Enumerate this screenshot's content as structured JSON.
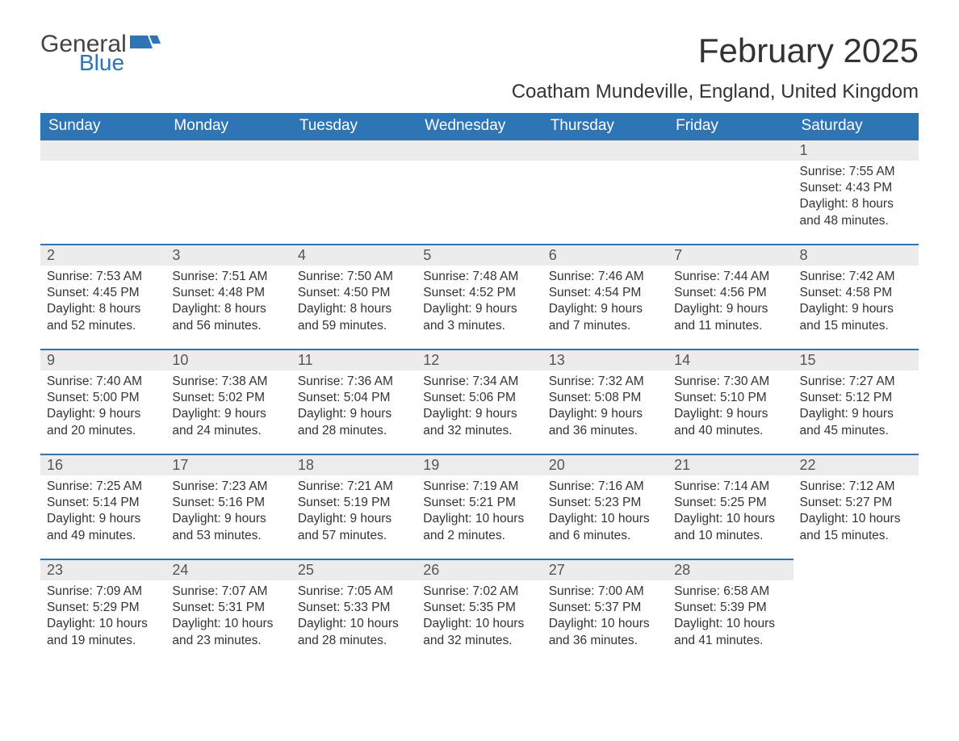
{
  "brand": {
    "general": "General",
    "blue": "Blue"
  },
  "title": {
    "month": "February 2025",
    "location": "Coatham Mundeville, England, United Kingdom"
  },
  "colors": {
    "accent": "#2e75b6",
    "header_bg": "#2e75b6",
    "header_text": "#ffffff",
    "daynum_bg": "#ececec",
    "body_text": "#333333"
  },
  "typography": {
    "title_fontsize": 42,
    "location_fontsize": 24,
    "day_header_fontsize": 19,
    "cell_fontsize": 15.5
  },
  "day_headers": [
    "Sunday",
    "Monday",
    "Tuesday",
    "Wednesday",
    "Thursday",
    "Friday",
    "Saturday"
  ],
  "weeks": [
    [
      {
        "day": "",
        "lines": [
          "",
          "",
          "",
          ""
        ]
      },
      {
        "day": "",
        "lines": [
          "",
          "",
          "",
          ""
        ]
      },
      {
        "day": "",
        "lines": [
          "",
          "",
          "",
          ""
        ]
      },
      {
        "day": "",
        "lines": [
          "",
          "",
          "",
          ""
        ]
      },
      {
        "day": "",
        "lines": [
          "",
          "",
          "",
          ""
        ]
      },
      {
        "day": "",
        "lines": [
          "",
          "",
          "",
          ""
        ]
      },
      {
        "day": "1",
        "lines": [
          "Sunrise: 7:55 AM",
          "Sunset: 4:43 PM",
          "Daylight: 8 hours",
          "and 48 minutes."
        ]
      }
    ],
    [
      {
        "day": "2",
        "lines": [
          "Sunrise: 7:53 AM",
          "Sunset: 4:45 PM",
          "Daylight: 8 hours",
          "and 52 minutes."
        ]
      },
      {
        "day": "3",
        "lines": [
          "Sunrise: 7:51 AM",
          "Sunset: 4:48 PM",
          "Daylight: 8 hours",
          "and 56 minutes."
        ]
      },
      {
        "day": "4",
        "lines": [
          "Sunrise: 7:50 AM",
          "Sunset: 4:50 PM",
          "Daylight: 8 hours",
          "and 59 minutes."
        ]
      },
      {
        "day": "5",
        "lines": [
          "Sunrise: 7:48 AM",
          "Sunset: 4:52 PM",
          "Daylight: 9 hours",
          "and 3 minutes."
        ]
      },
      {
        "day": "6",
        "lines": [
          "Sunrise: 7:46 AM",
          "Sunset: 4:54 PM",
          "Daylight: 9 hours",
          "and 7 minutes."
        ]
      },
      {
        "day": "7",
        "lines": [
          "Sunrise: 7:44 AM",
          "Sunset: 4:56 PM",
          "Daylight: 9 hours",
          "and 11 minutes."
        ]
      },
      {
        "day": "8",
        "lines": [
          "Sunrise: 7:42 AM",
          "Sunset: 4:58 PM",
          "Daylight: 9 hours",
          "and 15 minutes."
        ]
      }
    ],
    [
      {
        "day": "9",
        "lines": [
          "Sunrise: 7:40 AM",
          "Sunset: 5:00 PM",
          "Daylight: 9 hours",
          "and 20 minutes."
        ]
      },
      {
        "day": "10",
        "lines": [
          "Sunrise: 7:38 AM",
          "Sunset: 5:02 PM",
          "Daylight: 9 hours",
          "and 24 minutes."
        ]
      },
      {
        "day": "11",
        "lines": [
          "Sunrise: 7:36 AM",
          "Sunset: 5:04 PM",
          "Daylight: 9 hours",
          "and 28 minutes."
        ]
      },
      {
        "day": "12",
        "lines": [
          "Sunrise: 7:34 AM",
          "Sunset: 5:06 PM",
          "Daylight: 9 hours",
          "and 32 minutes."
        ]
      },
      {
        "day": "13",
        "lines": [
          "Sunrise: 7:32 AM",
          "Sunset: 5:08 PM",
          "Daylight: 9 hours",
          "and 36 minutes."
        ]
      },
      {
        "day": "14",
        "lines": [
          "Sunrise: 7:30 AM",
          "Sunset: 5:10 PM",
          "Daylight: 9 hours",
          "and 40 minutes."
        ]
      },
      {
        "day": "15",
        "lines": [
          "Sunrise: 7:27 AM",
          "Sunset: 5:12 PM",
          "Daylight: 9 hours",
          "and 45 minutes."
        ]
      }
    ],
    [
      {
        "day": "16",
        "lines": [
          "Sunrise: 7:25 AM",
          "Sunset: 5:14 PM",
          "Daylight: 9 hours",
          "and 49 minutes."
        ]
      },
      {
        "day": "17",
        "lines": [
          "Sunrise: 7:23 AM",
          "Sunset: 5:16 PM",
          "Daylight: 9 hours",
          "and 53 minutes."
        ]
      },
      {
        "day": "18",
        "lines": [
          "Sunrise: 7:21 AM",
          "Sunset: 5:19 PM",
          "Daylight: 9 hours",
          "and 57 minutes."
        ]
      },
      {
        "day": "19",
        "lines": [
          "Sunrise: 7:19 AM",
          "Sunset: 5:21 PM",
          "Daylight: 10 hours",
          "and 2 minutes."
        ]
      },
      {
        "day": "20",
        "lines": [
          "Sunrise: 7:16 AM",
          "Sunset: 5:23 PM",
          "Daylight: 10 hours",
          "and 6 minutes."
        ]
      },
      {
        "day": "21",
        "lines": [
          "Sunrise: 7:14 AM",
          "Sunset: 5:25 PM",
          "Daylight: 10 hours",
          "and 10 minutes."
        ]
      },
      {
        "day": "22",
        "lines": [
          "Sunrise: 7:12 AM",
          "Sunset: 5:27 PM",
          "Daylight: 10 hours",
          "and 15 minutes."
        ]
      }
    ],
    [
      {
        "day": "23",
        "lines": [
          "Sunrise: 7:09 AM",
          "Sunset: 5:29 PM",
          "Daylight: 10 hours",
          "and 19 minutes."
        ]
      },
      {
        "day": "24",
        "lines": [
          "Sunrise: 7:07 AM",
          "Sunset: 5:31 PM",
          "Daylight: 10 hours",
          "and 23 minutes."
        ]
      },
      {
        "day": "25",
        "lines": [
          "Sunrise: 7:05 AM",
          "Sunset: 5:33 PM",
          "Daylight: 10 hours",
          "and 28 minutes."
        ]
      },
      {
        "day": "26",
        "lines": [
          "Sunrise: 7:02 AM",
          "Sunset: 5:35 PM",
          "Daylight: 10 hours",
          "and 32 minutes."
        ]
      },
      {
        "day": "27",
        "lines": [
          "Sunrise: 7:00 AM",
          "Sunset: 5:37 PM",
          "Daylight: 10 hours",
          "and 36 minutes."
        ]
      },
      {
        "day": "28",
        "lines": [
          "Sunrise: 6:58 AM",
          "Sunset: 5:39 PM",
          "Daylight: 10 hours",
          "and 41 minutes."
        ]
      },
      {
        "day": "",
        "lines": [
          "",
          "",
          "",
          ""
        ]
      }
    ]
  ]
}
